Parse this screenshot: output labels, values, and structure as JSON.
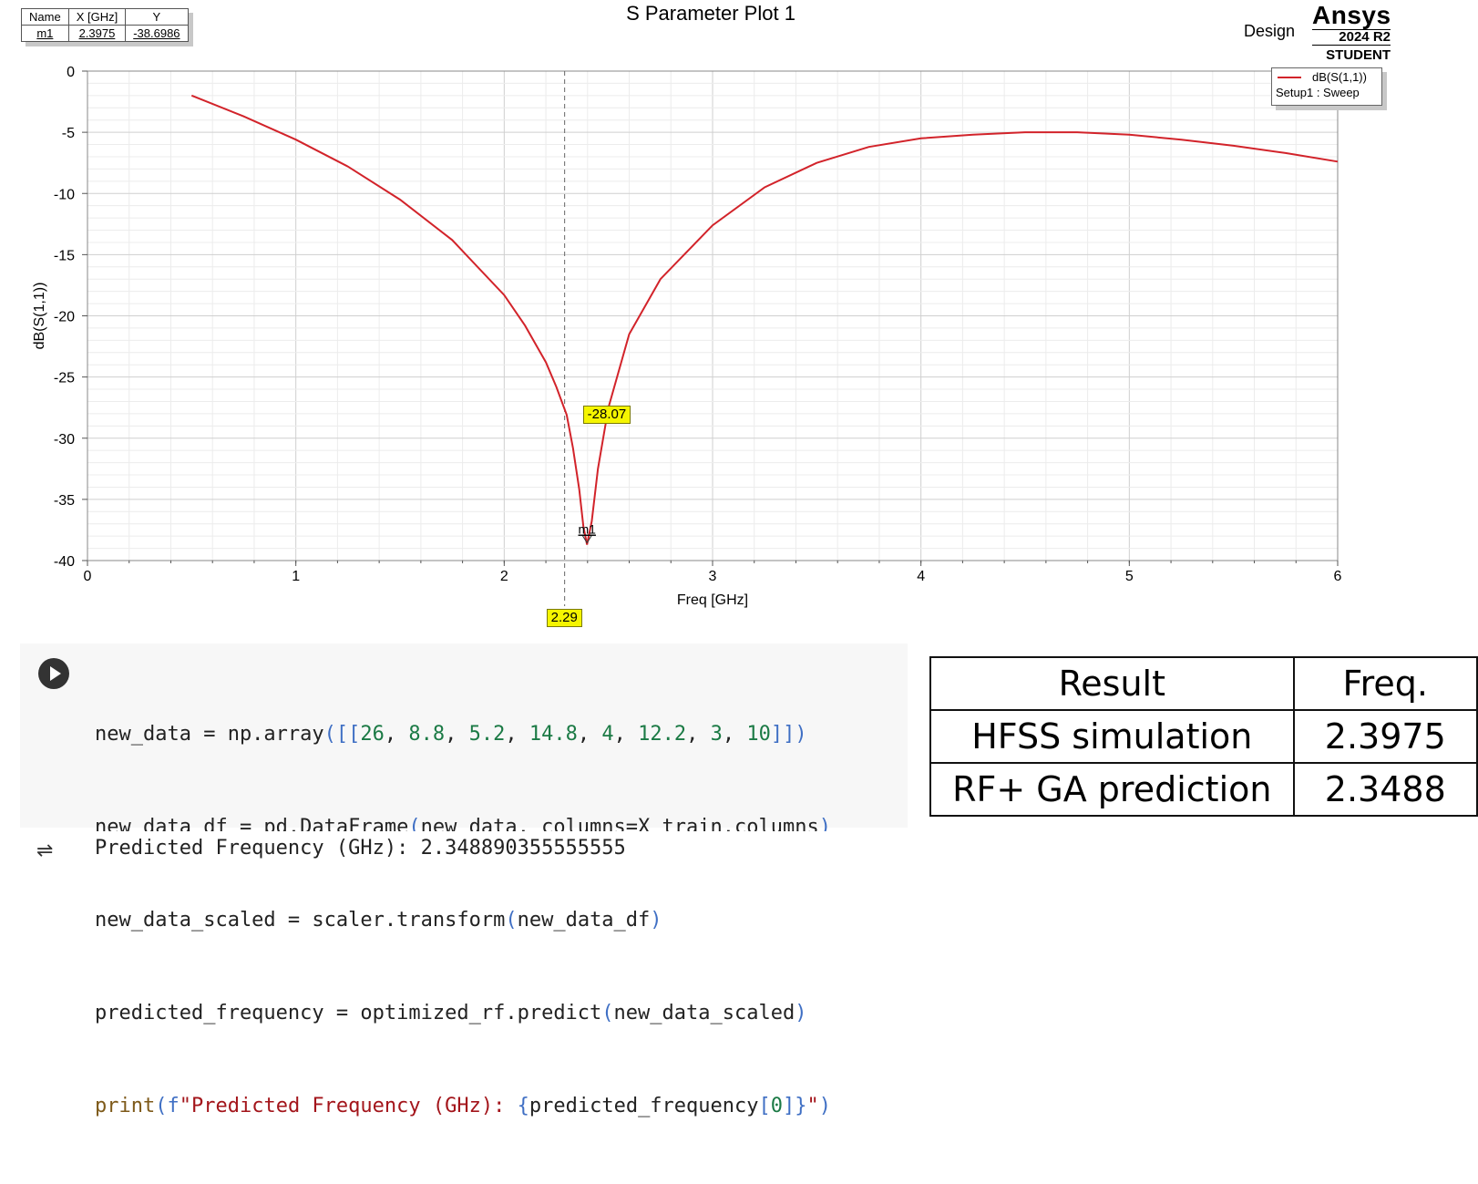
{
  "marker_table": {
    "headers": [
      "Name",
      "X [GHz]",
      "Y"
    ],
    "row": {
      "name": "m1",
      "x": "2.3975",
      "y": "-38.6986"
    }
  },
  "plot": {
    "title": "S Parameter Plot 1",
    "design_label": "Design",
    "brand": {
      "name": "Ansys",
      "version": "2024 R2",
      "edition": "STUDENT"
    },
    "legend": {
      "series": "dB(S(1,1))",
      "setup": "Setup1 : Sweep"
    },
    "cursor": {
      "x_label": "2.29",
      "y_label": "-28.07"
    },
    "marker_label": "m1"
  },
  "chart_data": {
    "type": "line",
    "title": "S Parameter Plot 1",
    "xlabel": "Freq [GHz]",
    "ylabel": "dB(S(1,1))",
    "xlim": [
      0,
      6
    ],
    "ylim": [
      -40,
      0
    ],
    "xticks": [
      0,
      1,
      2,
      3,
      4,
      5,
      6
    ],
    "yticks": [
      0,
      -5,
      -10,
      -15,
      -20,
      -25,
      -30,
      -35,
      -40
    ],
    "grid": true,
    "legend_position": "top-right",
    "series": [
      {
        "name": "dB(S(1,1))",
        "color": "#d2232a",
        "x": [
          0.5,
          0.75,
          1.0,
          1.25,
          1.5,
          1.75,
          2.0,
          2.1,
          2.2,
          2.25,
          2.3,
          2.33,
          2.36,
          2.38,
          2.3975,
          2.42,
          2.45,
          2.5,
          2.6,
          2.75,
          3.0,
          3.25,
          3.5,
          3.75,
          4.0,
          4.25,
          4.5,
          4.75,
          5.0,
          5.25,
          5.5,
          5.75,
          6.0
        ],
        "y": [
          -2.0,
          -3.7,
          -5.6,
          -7.8,
          -10.5,
          -13.8,
          -18.3,
          -20.8,
          -23.8,
          -25.8,
          -28.1,
          -30.8,
          -34.2,
          -37.2,
          -38.7,
          -36.8,
          -32.5,
          -27.5,
          -21.5,
          -17.0,
          -12.6,
          -9.5,
          -7.5,
          -6.2,
          -5.5,
          -5.2,
          -5.0,
          -5.0,
          -5.2,
          -5.6,
          -6.1,
          -6.7,
          -7.4
        ]
      }
    ],
    "markers": [
      {
        "name": "m1",
        "x": 2.3975,
        "y": -38.6986
      }
    ],
    "cursor_x": 2.29
  },
  "code_cell": {
    "lines": [
      "new_data = np.array([[26, 8.8, 5.2, 14.8, 4, 12.2, 3, 10]])",
      "new_data_df = pd.DataFrame(new_data, columns=X_train.columns)",
      "new_data_scaled = scaler.transform(new_data_df)",
      "predicted_frequency = optimized_rf.predict(new_data_scaled)",
      "print(f\"Predicted Frequency (GHz): {predicted_frequency[0]}\")"
    ],
    "output": "Predicted Frequency (GHz): 2.348890355555555"
  },
  "result_table": {
    "headers": [
      "Result",
      "Freq."
    ],
    "rows": [
      [
        "HFSS simulation",
        "2.3975"
      ],
      [
        "RF+ GA prediction",
        "2.3488"
      ]
    ]
  }
}
